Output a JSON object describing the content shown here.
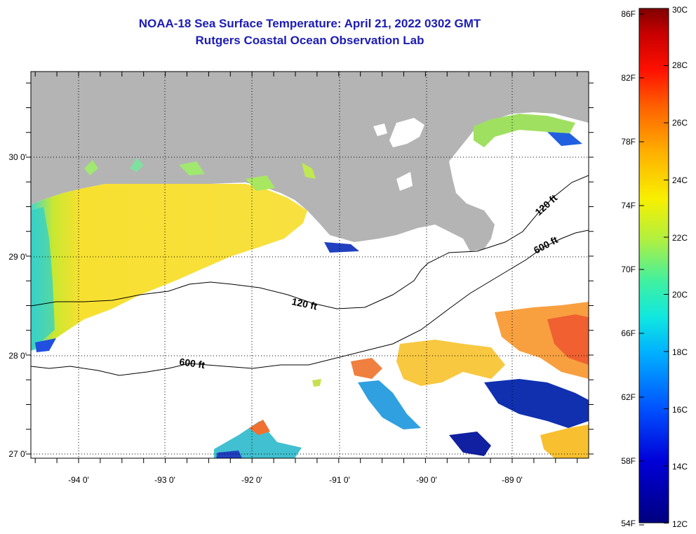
{
  "header": {
    "title": "NOAA-18 Sea Surface Temperature:  April 21, 2022 0302 GMT",
    "subtitle": "Rutgers Coastal Ocean Observation Lab"
  },
  "map": {
    "x_ticks": [
      "-94 0'",
      "-93 0'",
      "-92 0'",
      "-91 0'",
      "-90 0'",
      "-89 0'"
    ],
    "y_ticks": [
      "30 0'",
      "29 0'",
      "28 0'",
      "27 0'"
    ],
    "contours": {
      "shelf_120_label_1": "120 ft",
      "shelf_120_label_2": "120 ft",
      "slope_600_label_1": "600 ft",
      "slope_600_label_2": "600 ft"
    },
    "colors": {
      "land": "#b4b4b4",
      "cloud_mask": "#ffffff",
      "warm": "#f07020",
      "mid": "#f8e020",
      "cool": "#20d0e0",
      "cold": "#1020a0"
    }
  },
  "colorbar": {
    "fahrenheit": [
      "86F",
      "82F",
      "78F",
      "74F",
      "70F",
      "66F",
      "62F",
      "58F",
      "54F"
    ],
    "celsius": [
      "30C",
      "28C",
      "26C",
      "24C",
      "22C",
      "20C",
      "18C",
      "16C",
      "14C",
      "12C"
    ]
  }
}
